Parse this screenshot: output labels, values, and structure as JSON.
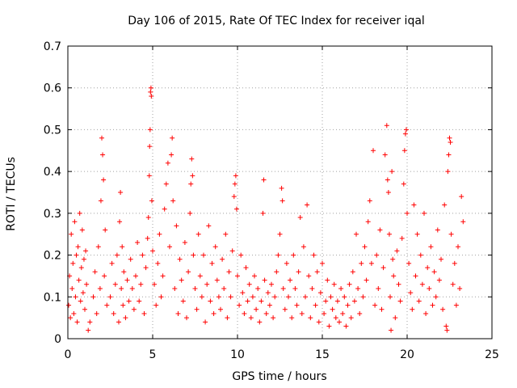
{
  "chart_data": {
    "type": "scatter",
    "title": "Day 106 of 2015, Rate Of TEC Index for receiver iqal",
    "xlabel": "GPS time / hours",
    "ylabel": "ROTI / TECUs",
    "xlim": [
      0,
      25
    ],
    "ylim": [
      0,
      0.7
    ],
    "xticks": [
      0,
      5,
      10,
      15,
      20,
      25
    ],
    "xtick_labels": [
      "0",
      "5",
      "10",
      "15",
      "20",
      "25"
    ],
    "yticks": [
      0,
      0.1,
      0.2,
      0.3,
      0.4,
      0.5,
      0.6,
      0.7
    ],
    "ytick_labels": [
      "0",
      "0.1",
      "0.2",
      "0.3",
      "0.4",
      "0.5",
      "0.6",
      "0.7"
    ],
    "grid": true,
    "marker": "plus",
    "color": "#ff0000",
    "series": [
      {
        "name": "ROTI",
        "points": [
          [
            0.05,
            0.08
          ],
          [
            0.1,
            0.15
          ],
          [
            0.15,
            0.05
          ],
          [
            0.2,
            0.25
          ],
          [
            0.25,
            0.12
          ],
          [
            0.3,
            0.18
          ],
          [
            0.35,
            0.06
          ],
          [
            0.4,
            0.28
          ],
          [
            0.45,
            0.1
          ],
          [
            0.5,
            0.2
          ],
          [
            0.55,
            0.04
          ],
          [
            0.6,
            0.22
          ],
          [
            0.65,
            0.14
          ],
          [
            0.7,
            0.3
          ],
          [
            0.75,
            0.09
          ],
          [
            0.8,
            0.17
          ],
          [
            0.85,
            0.26
          ],
          [
            0.9,
            0.11
          ],
          [
            0.95,
            0.19
          ],
          [
            1.0,
            0.07
          ],
          [
            1.05,
            0.21
          ],
          [
            1.1,
            0.13
          ],
          [
            1.2,
            0.02
          ],
          [
            1.3,
            0.04
          ],
          [
            1.5,
            0.1
          ],
          [
            1.6,
            0.16
          ],
          [
            1.7,
            0.06
          ],
          [
            1.8,
            0.22
          ],
          [
            1.9,
            0.12
          ],
          [
            1.95,
            0.33
          ],
          [
            2.0,
            0.48
          ],
          [
            2.05,
            0.44
          ],
          [
            2.1,
            0.38
          ],
          [
            2.15,
            0.15
          ],
          [
            2.2,
            0.26
          ],
          [
            2.3,
            0.08
          ],
          [
            2.5,
            0.1
          ],
          [
            2.6,
            0.18
          ],
          [
            2.7,
            0.06
          ],
          [
            2.8,
            0.13
          ],
          [
            2.9,
            0.2
          ],
          [
            3.0,
            0.04
          ],
          [
            3.05,
            0.28
          ],
          [
            3.1,
            0.35
          ],
          [
            3.15,
            0.12
          ],
          [
            3.2,
            0.22
          ],
          [
            3.25,
            0.08
          ],
          [
            3.3,
            0.16
          ],
          [
            3.4,
            0.05
          ],
          [
            3.5,
            0.14
          ],
          [
            3.6,
            0.09
          ],
          [
            3.7,
            0.19
          ],
          [
            3.8,
            0.12
          ],
          [
            3.9,
            0.07
          ],
          [
            4.0,
            0.15
          ],
          [
            4.1,
            0.23
          ],
          [
            4.2,
            0.09
          ],
          [
            4.3,
            0.13
          ],
          [
            4.4,
            0.2
          ],
          [
            4.5,
            0.06
          ],
          [
            4.6,
            0.17
          ],
          [
            4.7,
            0.24
          ],
          [
            4.75,
            0.29
          ],
          [
            4.8,
            0.39
          ],
          [
            4.82,
            0.46
          ],
          [
            4.85,
            0.5
          ],
          [
            4.87,
            0.59
          ],
          [
            4.9,
            0.6
          ],
          [
            4.92,
            0.58
          ],
          [
            4.95,
            0.33
          ],
          [
            5.0,
            0.21
          ],
          [
            5.1,
            0.13
          ],
          [
            5.2,
            0.08
          ],
          [
            5.3,
            0.18
          ],
          [
            5.4,
            0.25
          ],
          [
            5.5,
            0.1
          ],
          [
            5.6,
            0.15
          ],
          [
            5.7,
            0.31
          ],
          [
            5.8,
            0.37
          ],
          [
            5.9,
            0.42
          ],
          [
            6.0,
            0.22
          ],
          [
            6.1,
            0.44
          ],
          [
            6.15,
            0.48
          ],
          [
            6.2,
            0.33
          ],
          [
            6.3,
            0.12
          ],
          [
            6.4,
            0.27
          ],
          [
            6.5,
            0.06
          ],
          [
            6.6,
            0.19
          ],
          [
            6.7,
            0.14
          ],
          [
            6.8,
            0.09
          ],
          [
            6.9,
            0.23
          ],
          [
            7.0,
            0.05
          ],
          [
            7.1,
            0.16
          ],
          [
            7.2,
            0.3
          ],
          [
            7.25,
            0.37
          ],
          [
            7.3,
            0.43
          ],
          [
            7.35,
            0.39
          ],
          [
            7.4,
            0.2
          ],
          [
            7.5,
            0.12
          ],
          [
            7.6,
            0.07
          ],
          [
            7.7,
            0.25
          ],
          [
            7.8,
            0.15
          ],
          [
            7.9,
            0.1
          ],
          [
            8.0,
            0.2
          ],
          [
            8.1,
            0.04
          ],
          [
            8.2,
            0.13
          ],
          [
            8.3,
            0.27
          ],
          [
            8.4,
            0.09
          ],
          [
            8.5,
            0.18
          ],
          [
            8.6,
            0.06
          ],
          [
            8.7,
            0.22
          ],
          [
            8.8,
            0.14
          ],
          [
            8.9,
            0.1
          ],
          [
            9.0,
            0.07
          ],
          [
            9.1,
            0.19
          ],
          [
            9.2,
            0.12
          ],
          [
            9.3,
            0.25
          ],
          [
            9.4,
            0.05
          ],
          [
            9.5,
            0.16
          ],
          [
            9.6,
            0.1
          ],
          [
            9.7,
            0.21
          ],
          [
            9.8,
            0.34
          ],
          [
            9.85,
            0.37
          ],
          [
            9.9,
            0.39
          ],
          [
            9.95,
            0.31
          ],
          [
            10.0,
            0.15
          ],
          [
            10.1,
            0.08
          ],
          [
            10.2,
            0.2
          ],
          [
            10.3,
            0.11
          ],
          [
            10.4,
            0.06
          ],
          [
            10.5,
            0.17
          ],
          [
            10.6,
            0.09
          ],
          [
            10.7,
            0.13
          ],
          [
            10.8,
            0.05
          ],
          [
            10.9,
            0.1
          ],
          [
            11.0,
            0.15
          ],
          [
            11.1,
            0.07
          ],
          [
            11.2,
            0.12
          ],
          [
            11.3,
            0.04
          ],
          [
            11.4,
            0.09
          ],
          [
            11.5,
            0.3
          ],
          [
            11.55,
            0.38
          ],
          [
            11.6,
            0.14
          ],
          [
            11.7,
            0.06
          ],
          [
            11.8,
            0.11
          ],
          [
            11.9,
            0.08
          ],
          [
            12.0,
            0.13
          ],
          [
            12.1,
            0.05
          ],
          [
            12.2,
            0.1
          ],
          [
            12.3,
            0.16
          ],
          [
            12.4,
            0.2
          ],
          [
            12.5,
            0.25
          ],
          [
            12.6,
            0.36
          ],
          [
            12.65,
            0.33
          ],
          [
            12.7,
            0.12
          ],
          [
            12.8,
            0.07
          ],
          [
            12.9,
            0.18
          ],
          [
            13.0,
            0.1
          ],
          [
            13.1,
            0.14
          ],
          [
            13.2,
            0.05
          ],
          [
            13.3,
            0.2
          ],
          [
            13.4,
            0.12
          ],
          [
            13.5,
            0.08
          ],
          [
            13.6,
            0.16
          ],
          [
            13.7,
            0.29
          ],
          [
            13.8,
            0.06
          ],
          [
            13.9,
            0.22
          ],
          [
            14.0,
            0.1
          ],
          [
            14.1,
            0.32
          ],
          [
            14.2,
            0.15
          ],
          [
            14.3,
            0.05
          ],
          [
            14.4,
            0.12
          ],
          [
            14.5,
            0.2
          ],
          [
            14.6,
            0.08
          ],
          [
            14.7,
            0.16
          ],
          [
            14.8,
            0.04
          ],
          [
            14.9,
            0.11
          ],
          [
            15.0,
            0.18
          ],
          [
            15.1,
            0.06
          ],
          [
            15.2,
            0.09
          ],
          [
            15.3,
            0.14
          ],
          [
            15.4,
            0.03
          ],
          [
            15.5,
            0.1
          ],
          [
            15.6,
            0.07
          ],
          [
            15.7,
            0.13
          ],
          [
            15.8,
            0.05
          ],
          [
            15.9,
            0.09
          ],
          [
            16.0,
            0.04
          ],
          [
            16.1,
            0.12
          ],
          [
            16.2,
            0.06
          ],
          [
            16.3,
            0.1
          ],
          [
            16.4,
            0.03
          ],
          [
            16.5,
            0.08
          ],
          [
            16.6,
            0.13
          ],
          [
            16.7,
            0.05
          ],
          [
            16.8,
            0.16
          ],
          [
            16.9,
            0.09
          ],
          [
            17.0,
            0.25
          ],
          [
            17.1,
            0.12
          ],
          [
            17.2,
            0.06
          ],
          [
            17.3,
            0.18
          ],
          [
            17.4,
            0.1
          ],
          [
            17.5,
            0.22
          ],
          [
            17.6,
            0.14
          ],
          [
            17.7,
            0.28
          ],
          [
            17.8,
            0.33
          ],
          [
            17.9,
            0.18
          ],
          [
            18.0,
            0.45
          ],
          [
            18.1,
            0.08
          ],
          [
            18.2,
            0.2
          ],
          [
            18.3,
            0.12
          ],
          [
            18.4,
            0.26
          ],
          [
            18.5,
            0.07
          ],
          [
            18.6,
            0.17
          ],
          [
            18.7,
            0.44
          ],
          [
            18.8,
            0.51
          ],
          [
            18.85,
            0.38
          ],
          [
            18.9,
            0.35
          ],
          [
            18.95,
            0.25
          ],
          [
            19.0,
            0.1
          ],
          [
            19.05,
            0.02
          ],
          [
            19.1,
            0.4
          ],
          [
            19.15,
            0.19
          ],
          [
            19.2,
            0.15
          ],
          [
            19.3,
            0.05
          ],
          [
            19.4,
            0.21
          ],
          [
            19.5,
            0.13
          ],
          [
            19.6,
            0.09
          ],
          [
            19.7,
            0.24
          ],
          [
            19.8,
            0.37
          ],
          [
            19.85,
            0.45
          ],
          [
            19.9,
            0.49
          ],
          [
            19.95,
            0.5
          ],
          [
            20.0,
            0.3
          ],
          [
            20.1,
            0.18
          ],
          [
            20.2,
            0.11
          ],
          [
            20.3,
            0.07
          ],
          [
            20.4,
            0.32
          ],
          [
            20.5,
            0.15
          ],
          [
            20.6,
            0.25
          ],
          [
            20.7,
            0.09
          ],
          [
            20.8,
            0.2
          ],
          [
            20.9,
            0.13
          ],
          [
            21.0,
            0.3
          ],
          [
            21.1,
            0.06
          ],
          [
            21.2,
            0.17
          ],
          [
            21.3,
            0.12
          ],
          [
            21.4,
            0.22
          ],
          [
            21.5,
            0.08
          ],
          [
            21.6,
            0.16
          ],
          [
            21.7,
            0.1
          ],
          [
            21.8,
            0.26
          ],
          [
            21.9,
            0.14
          ],
          [
            22.0,
            0.19
          ],
          [
            22.1,
            0.07
          ],
          [
            22.2,
            0.32
          ],
          [
            22.3,
            0.03
          ],
          [
            22.35,
            0.02
          ],
          [
            22.4,
            0.4
          ],
          [
            22.45,
            0.44
          ],
          [
            22.5,
            0.48
          ],
          [
            22.55,
            0.47
          ],
          [
            22.6,
            0.25
          ],
          [
            22.7,
            0.13
          ],
          [
            22.8,
            0.18
          ],
          [
            22.9,
            0.08
          ],
          [
            23.0,
            0.22
          ],
          [
            23.1,
            0.12
          ],
          [
            23.2,
            0.34
          ],
          [
            23.3,
            0.28
          ]
        ]
      }
    ]
  }
}
